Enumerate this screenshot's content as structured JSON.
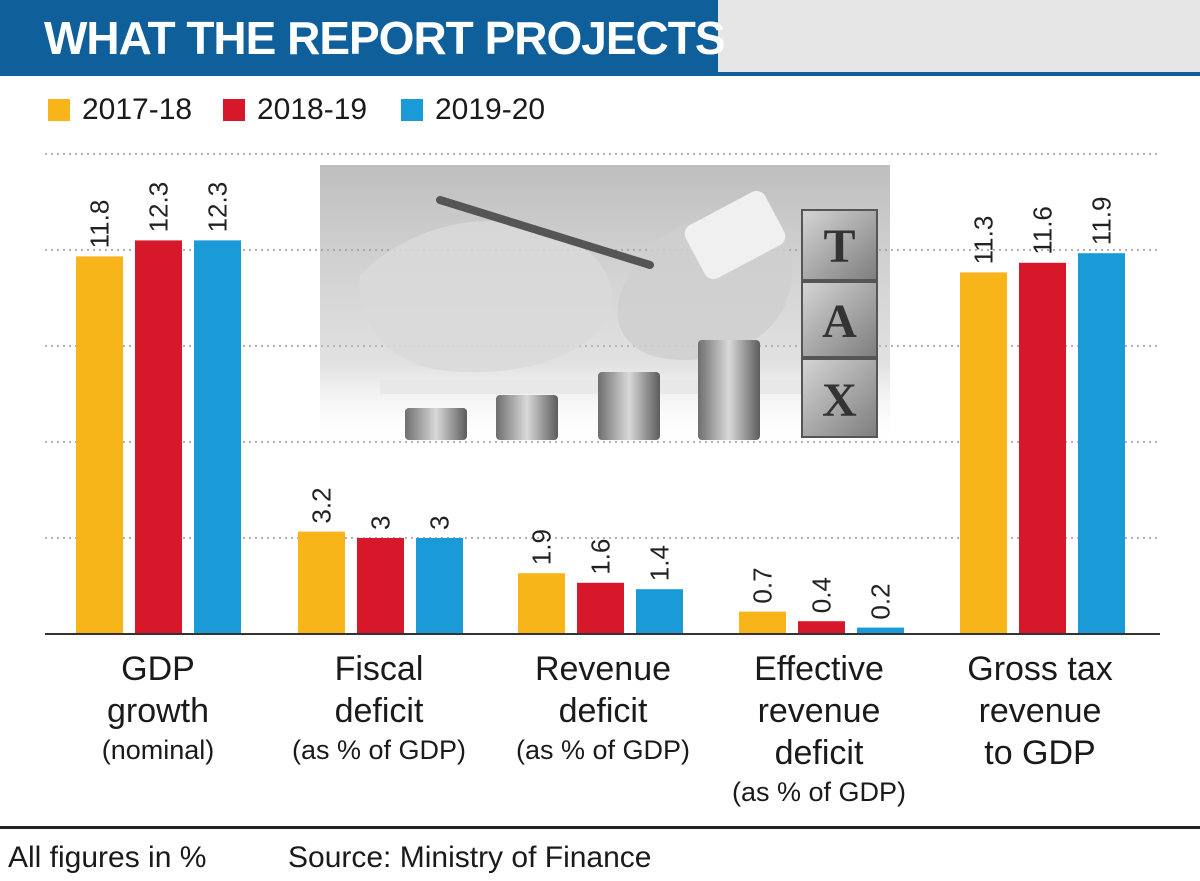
{
  "header": {
    "title": "WHAT THE REPORT PROJECTS"
  },
  "legend": [
    {
      "label": "2017-18",
      "color": "#f7b519"
    },
    {
      "label": "2018-19",
      "color": "#d7182a"
    },
    {
      "label": "2019-20",
      "color": "#1a9ad6"
    }
  ],
  "categories": [
    {
      "main": [
        "GDP",
        "growth"
      ],
      "sub": [
        "(nominal)"
      ]
    },
    {
      "main": [
        "Fiscal",
        "deficit"
      ],
      "sub": [
        "(as % of GDP)"
      ]
    },
    {
      "main": [
        "Revenue",
        "deficit"
      ],
      "sub": [
        "(as % of GDP)"
      ]
    },
    {
      "main": [
        "Effective",
        "revenue",
        "deficit"
      ],
      "sub": [
        "(as % of GDP)"
      ]
    },
    {
      "main": [
        "Gross tax",
        "revenue",
        "to GDP"
      ],
      "sub": []
    }
  ],
  "footer": {
    "note": "All figures in %",
    "source": "Source: Ministry of Finance"
  },
  "photo": {
    "icon": "tax-blocks-and-coins-photo",
    "letters": [
      "T",
      "A",
      "X"
    ]
  },
  "chart_data": {
    "type": "bar",
    "categories": [
      "GDP growth (nominal)",
      "Fiscal deficit (as % of GDP)",
      "Revenue deficit (as % of GDP)",
      "Effective revenue deficit (as % of GDP)",
      "Gross tax revenue to GDP"
    ],
    "series": [
      {
        "name": "2017-18",
        "values": [
          11.8,
          3.2,
          1.9,
          0.7,
          11.3
        ],
        "labels": [
          "11.8",
          "3.2",
          "1.9",
          "0.7",
          "11.3"
        ],
        "color": "#f7b519"
      },
      {
        "name": "2018-19",
        "values": [
          12.3,
          3,
          1.6,
          0.4,
          11.6
        ],
        "labels": [
          "12.3",
          "3",
          "1.6",
          "0.4",
          "11.6"
        ],
        "color": "#d7182a"
      },
      {
        "name": "2019-20",
        "values": [
          12.3,
          3,
          1.4,
          0.2,
          11.9
        ],
        "labels": [
          "12.3",
          "3",
          "1.4",
          "0.2",
          "11.9"
        ],
        "color": "#1a9ad6"
      }
    ],
    "ylim": [
      0,
      15
    ],
    "grid": true,
    "legend_position": "top-left"
  }
}
